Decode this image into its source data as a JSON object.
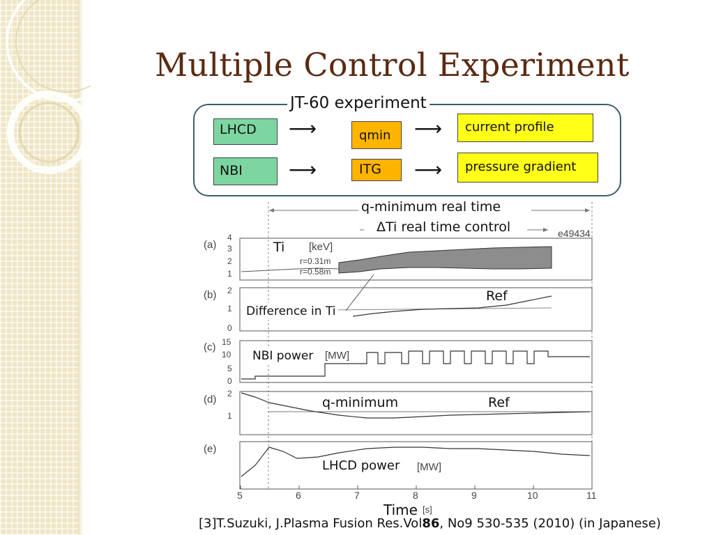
{
  "slide": {
    "title": "Multiple Control Experiment",
    "frame_label": "JT-60 experiment"
  },
  "diagram": {
    "lhcd": "LHCD",
    "qmin": "qmin",
    "current_profile": "current profile",
    "nbi": "NBI",
    "itg": "ITG",
    "pressure_gradient": "pressure gradient"
  },
  "figure": {
    "qmin_realtime": "q-minimum real time",
    "ti_realtime": "ΔTi real time control",
    "shot_id": "e49434",
    "time_label": "Time",
    "time_unit": "[s]",
    "panels": {
      "a": {
        "tag": "(a)",
        "overlay": "Ti",
        "unit": "[keV]",
        "r1": "r=0.31m",
        "r2": "r=0.58m",
        "ticks": [
          "4",
          "3",
          "2",
          "1"
        ]
      },
      "b": {
        "tag": "(b)",
        "overlay": "Difference in Ti",
        "ref": "Ref",
        "ticks": [
          "2",
          "1",
          "0"
        ]
      },
      "c": {
        "tag": "(c)",
        "overlay": "NBI power",
        "unit": "[MW]",
        "ticks": [
          "15",
          "10",
          "5",
          "0"
        ]
      },
      "d": {
        "tag": "(d)",
        "overlay": "q-minimum",
        "ref": "Ref",
        "ticks": [
          "2",
          "1"
        ]
      },
      "e": {
        "tag": "(e)",
        "overlay": "LHCD power",
        "unit": "[MW]"
      }
    },
    "x_ticks": [
      "5",
      "6",
      "7",
      "8",
      "9",
      "10",
      "11"
    ]
  },
  "citation": {
    "prefix": "[3]T.Suzuki, J.Plasma Fusion Res.Vol",
    "volume": "86",
    "suffix": ", No9 530-535 (2010) (in Japanese)"
  }
}
